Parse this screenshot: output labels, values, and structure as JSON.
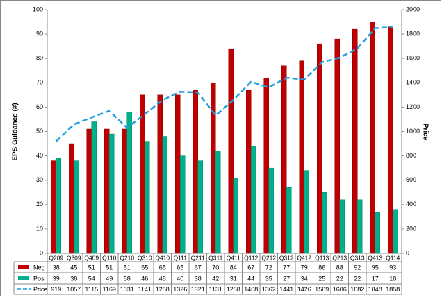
{
  "chart_data": {
    "type": "bar",
    "categories": [
      "Q209",
      "Q309",
      "Q409",
      "Q110",
      "Q210",
      "Q310",
      "Q410",
      "Q111",
      "Q211",
      "Q311",
      "Q411",
      "Q112",
      "Q212",
      "Q312",
      "Q412",
      "Q113",
      "Q213",
      "Q313",
      "Q413",
      "Q114"
    ],
    "series": [
      {
        "name": "Neg",
        "color": "#c00000",
        "values": [
          38,
          45,
          51,
          51,
          51,
          65,
          65,
          65,
          67,
          70,
          84,
          67,
          72,
          77,
          79,
          86,
          88,
          92,
          95,
          93
        ]
      },
      {
        "name": "Pos",
        "color": "#00b08a",
        "values": [
          39,
          38,
          54,
          49,
          58,
          46,
          48,
          40,
          38,
          42,
          31,
          44,
          35,
          27,
          34,
          25,
          22,
          22,
          17,
          18
        ]
      },
      {
        "name": "Price",
        "color": "#1ea0e0",
        "type": "line",
        "axis": "y2",
        "values": [
          919,
          1057,
          1115,
          1169,
          1031,
          1141,
          1258,
          1326,
          1321,
          1131,
          1258,
          1408,
          1362,
          1441,
          1426,
          1569,
          1606,
          1682,
          1848,
          1858
        ]
      }
    ],
    "y_label": "EPS Guidance (#)",
    "y2_label": "Price",
    "ylim": [
      0,
      100
    ],
    "yticks": [
      0,
      10,
      20,
      30,
      40,
      50,
      60,
      70,
      80,
      90,
      100
    ],
    "y2lim": [
      0,
      2000
    ],
    "y2ticks": [
      0,
      200,
      400,
      600,
      800,
      1000,
      1200,
      1400,
      1600,
      1800,
      2000
    ],
    "grid": false
  }
}
